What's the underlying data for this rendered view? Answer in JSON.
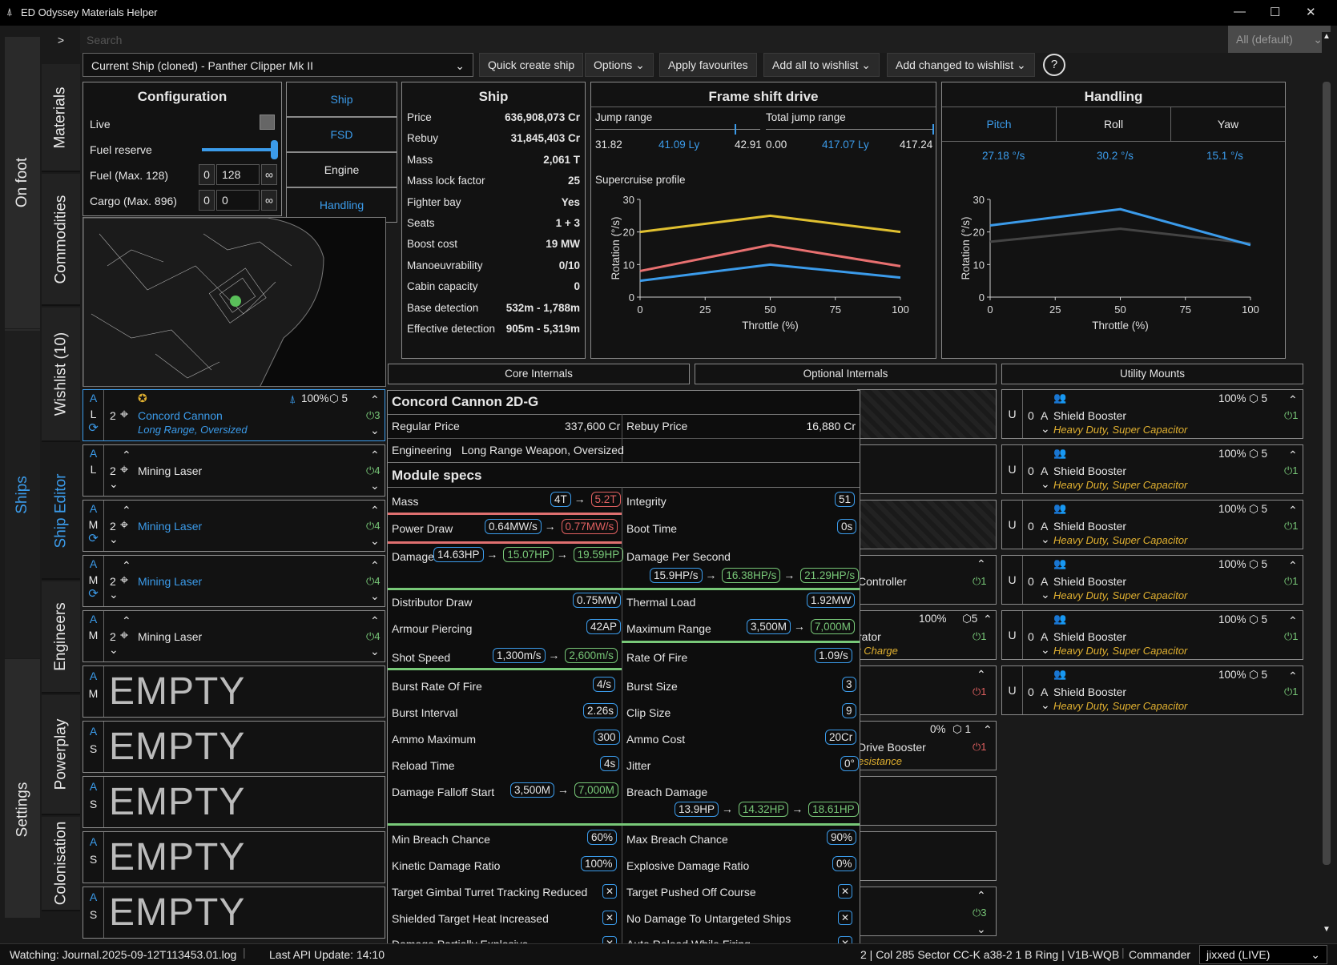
{
  "app": {
    "title": "ED Odyssey Materials Helper",
    "min": "—",
    "max": "☐",
    "close": "✕"
  },
  "nav": {
    "on_foot": "On foot",
    "ships": "Ships",
    "settings": "Settings",
    "expand": ">"
  },
  "side_tabs": {
    "materials": "Materials",
    "commodities": "Commodities",
    "wishlist": "Wishlist (10)",
    "ship_editor": "Ship Editor",
    "engineers": "Engineers",
    "powerplay": "Powerplay",
    "colonisation": "Colonisation"
  },
  "search": {
    "placeholder": "Search",
    "filter": "All (default)"
  },
  "toolbar": {
    "ship_select": "Current Ship (cloned) - Panther Clipper Mk II",
    "quick_create": "Quick create ship",
    "options": "Options",
    "apply_fav": "Apply favourites",
    "add_all": "Add all to wishlist",
    "add_changed": "Add changed to wishlist",
    "help": "?"
  },
  "config": {
    "title": "Configuration",
    "live": "Live",
    "fuel_reserve": "Fuel reserve",
    "fuel": "Fuel (Max. 128)",
    "fuel_min": "0",
    "fuel_val": "128",
    "cargo": "Cargo (Max. 896)",
    "cargo_min": "0",
    "cargo_val": "0",
    "inf": "∞",
    "fuel_reserve_level": 1.0
  },
  "view_tabs": {
    "ship": "Ship",
    "fsd": "FSD",
    "engine": "Engine",
    "handling": "Handling"
  },
  "ship": {
    "title": "Ship",
    "rows": [
      {
        "k": "Price",
        "v": "636,908,073 Cr"
      },
      {
        "k": "Rebuy",
        "v": "31,845,403 Cr"
      },
      {
        "k": "Mass",
        "v": "2,061 T"
      },
      {
        "k": "Mass lock factor",
        "v": "25"
      },
      {
        "k": "Fighter bay",
        "v": "Yes"
      },
      {
        "k": "Seats",
        "v": "1 + 3"
      },
      {
        "k": "Boost cost",
        "v": "19 MW"
      },
      {
        "k": "Manoeuvrability",
        "v": "0/10"
      },
      {
        "k": "Cabin capacity",
        "v": "0"
      },
      {
        "k": "Base detection",
        "v": "532m - 1,788m"
      },
      {
        "k": "Effective detection",
        "v": "905m - 5,319m"
      }
    ]
  },
  "fsd": {
    "title": "Frame shift drive",
    "jump_label": "Jump range",
    "total_label": "Total jump range",
    "jump_min": "31.82",
    "jump_cur": "41.09 Ly",
    "jump_max": "42.91",
    "total_min": "0.00",
    "total_cur": "417.07 Ly",
    "total_max": "417.24",
    "profile": "Supercruise profile"
  },
  "handling": {
    "title": "Handling",
    "tabs": [
      "Pitch",
      "Roll",
      "Yaw"
    ],
    "vals": [
      "27.18 °/s",
      "30.2 °/s",
      "15.1 °/s"
    ]
  },
  "chart_data": [
    {
      "type": "line",
      "title": "Supercruise profile",
      "xlabel": "Throttle (%)",
      "ylabel": "Rotation (°/s)",
      "x": [
        0,
        50,
        100
      ],
      "xticks": [
        0,
        25,
        50,
        75,
        100
      ],
      "yticks": [
        0,
        10,
        20,
        30
      ],
      "ylim": [
        0,
        30
      ],
      "xlim": [
        0,
        100
      ],
      "series": [
        {
          "color": "#e0c030",
          "values": [
            20,
            25,
            20
          ]
        },
        {
          "color": "#e87070",
          "values": [
            8,
            16,
            9.5
          ]
        },
        {
          "color": "#3b9bea",
          "values": [
            5,
            10,
            6
          ]
        }
      ]
    },
    {
      "type": "line",
      "xlabel": "Throttle (%)",
      "ylabel": "Rotation (°/s)",
      "x": [
        0,
        50,
        100
      ],
      "xticks": [
        0,
        25,
        50,
        75,
        100
      ],
      "yticks": [
        0,
        10,
        20,
        30
      ],
      "ylim": [
        0,
        30
      ],
      "xlim": [
        0,
        100
      ],
      "series": [
        {
          "color": "#444444",
          "values": [
            17,
            21,
            16.5
          ]
        },
        {
          "color": "#3b9bea",
          "values": [
            22,
            27,
            16
          ]
        }
      ]
    }
  ],
  "section_tabs": {
    "core": "Core Internals",
    "optional": "Optional Internals",
    "utility": "Utility Mounts"
  },
  "hardpoints": [
    {
      "a": "A",
      "size": "L",
      "grade": "2",
      "name": "Concord Cannon",
      "eng": "Long Range, Oversized",
      "pct": "100%",
      "lvl": "5",
      "power": "3",
      "sel": true
    },
    {
      "a": "A",
      "size": "L",
      "grade": "2",
      "name": "Mining Laser",
      "eng": "",
      "pct": "",
      "lvl": "",
      "power": "4",
      "sel": false
    },
    {
      "a": "A",
      "size": "M",
      "grade": "2",
      "name": "Mining Laser",
      "eng": "",
      "pct": "",
      "lvl": "",
      "power": "4",
      "sel": false
    },
    {
      "a": "A",
      "size": "M",
      "grade": "2",
      "name": "Mining Laser",
      "eng": "",
      "pct": "",
      "lvl": "",
      "power": "4",
      "sel": false
    },
    {
      "a": "A",
      "size": "M",
      "grade": "2",
      "name": "Mining Laser",
      "eng": "",
      "pct": "",
      "lvl": "",
      "power": "4",
      "sel": false
    }
  ],
  "empty_slots": [
    {
      "a": "A",
      "size": "M",
      "label": "EMPTY"
    },
    {
      "a": "A",
      "size": "S",
      "label": "EMPTY"
    },
    {
      "a": "A",
      "size": "S",
      "label": "EMPTY"
    },
    {
      "a": "A",
      "size": "S",
      "label": "EMPTY"
    },
    {
      "a": "A",
      "size": "S",
      "label": "EMPTY"
    }
  ],
  "optional_partial": {
    "r1": "Controller",
    "r1p": "1",
    "r2": "rator",
    "r2e": "t Charge",
    "r2pct": "100%",
    "r2lvl": "5",
    "r2p": "1",
    "r3p": "1",
    "r4": "Drive Booster",
    "r4e": "esistance",
    "r4pct": "0%",
    "r4lvl": "1",
    "r4p": "1",
    "r5p": "3"
  },
  "utility": [
    {
      "u": "U",
      "g": "0",
      "c": "A",
      "name": "Shield Booster",
      "eng": "Heavy Duty, Super Capacitor",
      "pct": "100%",
      "lvl": "5",
      "power": "1"
    },
    {
      "u": "U",
      "g": "0",
      "c": "A",
      "name": "Shield Booster",
      "eng": "Heavy Duty, Super Capacitor",
      "pct": "100%",
      "lvl": "5",
      "power": "1"
    },
    {
      "u": "U",
      "g": "0",
      "c": "A",
      "name": "Shield Booster",
      "eng": "Heavy Duty, Super Capacitor",
      "pct": "100%",
      "lvl": "5",
      "power": "1"
    },
    {
      "u": "U",
      "g": "0",
      "c": "A",
      "name": "Shield Booster",
      "eng": "Heavy Duty, Super Capacitor",
      "pct": "100%",
      "lvl": "5",
      "power": "1"
    },
    {
      "u": "U",
      "g": "0",
      "c": "A",
      "name": "Shield Booster",
      "eng": "Heavy Duty, Super Capacitor",
      "pct": "100%",
      "lvl": "5",
      "power": "1"
    },
    {
      "u": "U",
      "g": "0",
      "c": "A",
      "name": "Shield Booster",
      "eng": "Heavy Duty, Super Capacitor",
      "pct": "100%",
      "lvl": "5",
      "power": "1"
    }
  ],
  "tooltip": {
    "title": "Concord Cannon 2D-G",
    "regular_price_l": "Regular Price",
    "regular_price": "337,600 Cr",
    "rebuy_price_l": "Rebuy Price",
    "rebuy_price": "16,880 Cr",
    "engineering_l": "Engineering",
    "engineering": "Long Range Weapon, Oversized",
    "specs_title": "Module specs",
    "mass_l": "Mass",
    "mass_a": "4T",
    "mass_b": "5.2T",
    "integrity_l": "Integrity",
    "integrity": "51",
    "power_l": "Power Draw",
    "power_a": "0.64MW/s",
    "power_b": "0.77MW/s",
    "boot_l": "Boot Time",
    "boot": "0s",
    "damage_l": "Damage",
    "damage_a": "14.63HP",
    "damage_b": "15.07HP",
    "damage_c": "19.59HP",
    "dps_l": "Damage Per Second",
    "dps_a": "15.9HP/s",
    "dps_b": "16.38HP/s",
    "dps_c": "21.29HP/s",
    "dist_l": "Distributor Draw",
    "dist": "0.75MW",
    "thermal_l": "Thermal Load",
    "thermal": "1.92MW",
    "ap_l": "Armour Piercing",
    "ap": "42AP",
    "range_l": "Maximum Range",
    "range_a": "3,500M",
    "range_b": "7,000M",
    "shot_l": "Shot Speed",
    "shot_a": "1,300m/s",
    "shot_b": "2,600m/s",
    "rof_l": "Rate Of Fire",
    "rof": "1.09/s",
    "brof_l": "Burst Rate Of Fire",
    "brof": "4/s",
    "bsize_l": "Burst Size",
    "bsize": "3",
    "bint_l": "Burst Interval",
    "bint": "2.26s",
    "clip_l": "Clip Size",
    "clip": "9",
    "ammo_l": "Ammo Maximum",
    "ammo": "300",
    "acost_l": "Ammo Cost",
    "acost": "20Cr",
    "reload_l": "Reload Time",
    "reload": "4s",
    "jitter_l": "Jitter",
    "jitter": "0°",
    "falloff_l": "Damage Falloff Start",
    "falloff_a": "3,500M",
    "falloff_b": "7,000M",
    "breach_l": "Breach Damage",
    "breach_a": "13.9HP",
    "breach_b": "14.32HP",
    "breach_c": "18.61HP",
    "minb_l": "Min Breach Chance",
    "minb": "60%",
    "maxb_l": "Max Breach Chance",
    "maxb": "90%",
    "kin_l": "Kinetic Damage Ratio",
    "kin": "100%",
    "exp_l": "Explosive Damage Ratio",
    "exp": "0%",
    "tgt_l": "Target Gimbal Turret Tracking Reduced",
    "push_l": "Target Pushed Off Course",
    "heat_l": "Shielded Target Heat Increased",
    "nodmg_l": "No Damage To Untargeted Ships",
    "partial_l": "Damage Partially Explosive",
    "autoreload_l": "Auto Reload While Firing",
    "x": "✕"
  },
  "status": {
    "watching": "Watching: Journal.2025-09-12T113453.01.log",
    "api": "Last API Update: 14:10",
    "location": "2 | Col 285 Sector CC-K a38-2 1 B Ring | V1B-WQB",
    "commander_l": "Commander",
    "commander": "jixxed (LIVE)"
  }
}
